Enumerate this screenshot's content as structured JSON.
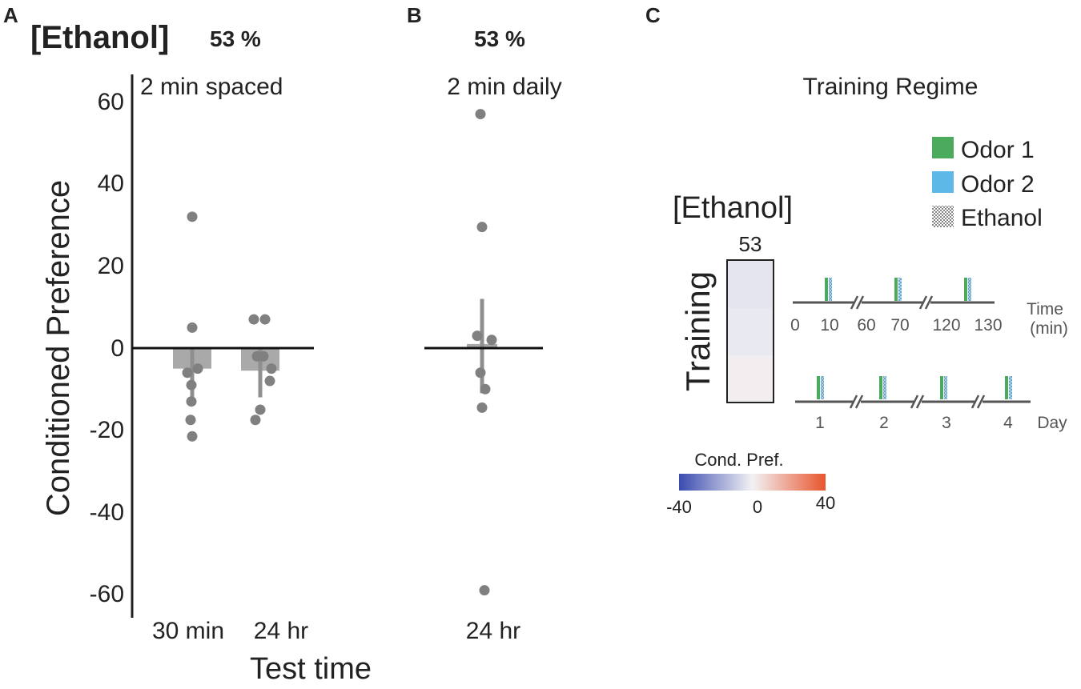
{
  "panels": {
    "a": {
      "letter": "A",
      "concentration_title": "[Ethanol]",
      "percent": "53 %",
      "condition": "2 min spaced"
    },
    "b": {
      "letter": "B",
      "percent": "53 %",
      "condition": "2 min daily"
    },
    "c": {
      "letter": "C",
      "title": "Training Regime"
    }
  },
  "axes": {
    "ylabel": "Conditioned Preference",
    "xlabel": "Test time",
    "yticks": [
      "60",
      "40",
      "20",
      "0",
      "-20",
      "-40",
      "-60"
    ]
  },
  "chart_data": [
    {
      "type": "bar",
      "panel": "A",
      "title": "2 min spaced",
      "xlabel": "Test time",
      "ylabel": "Conditioned Preference",
      "ylim": [
        -65,
        65
      ],
      "categories": [
        "30 min",
        "24 hr"
      ],
      "values": [
        -5,
        -5.5
      ],
      "errors": [
        [
          -12,
          0
        ],
        [
          -12,
          0
        ]
      ],
      "points": [
        [
          32,
          5,
          -5,
          -6,
          -9,
          -13,
          -17.5,
          -21.5
        ],
        [
          7,
          7,
          -2,
          -2,
          -5,
          -8,
          -15,
          -17.5
        ]
      ]
    },
    {
      "type": "bar",
      "panel": "B",
      "title": "2 min daily",
      "ylim": [
        -65,
        65
      ],
      "categories": [
        "24 hr"
      ],
      "values": [
        1
      ],
      "errors": [
        [
          -11,
          12
        ]
      ],
      "points": [
        [
          57,
          29.5,
          3,
          2,
          -6,
          -10,
          -14.5,
          -59
        ]
      ]
    },
    {
      "type": "heatmap",
      "panel": "C",
      "title": "Training Regime",
      "column_label": "[Ethanol]",
      "column_value": "53",
      "row_label": "Training",
      "cells": [
        -3,
        -2,
        1
      ],
      "colorbar": {
        "title": "Cond. Pref.",
        "min": "-40",
        "mid": "0",
        "max": "40",
        "range": [
          -40,
          40
        ]
      }
    }
  ],
  "legend": {
    "items": [
      {
        "label": "Odor 1",
        "color": "#4caa5c"
      },
      {
        "label": "Odor 2",
        "color": "#5db8e8"
      },
      {
        "label": "Ethanol",
        "pattern": "dotted"
      }
    ]
  },
  "timeline": {
    "minutes": {
      "ticks": [
        "0",
        "10",
        "60",
        "70",
        "120",
        "130"
      ],
      "unit_line1": "Time",
      "unit_line2": "(min)"
    },
    "days": {
      "ticks": [
        "1",
        "2",
        "3",
        "4"
      ],
      "unit": "Day"
    }
  },
  "colors": {
    "bar": "#a9a9a9",
    "point": "#808080",
    "axis": "#222222",
    "cmap_low": "#3a4bb0",
    "cmap_mid": "#f2f2f4",
    "cmap_high": "#e8552e"
  }
}
